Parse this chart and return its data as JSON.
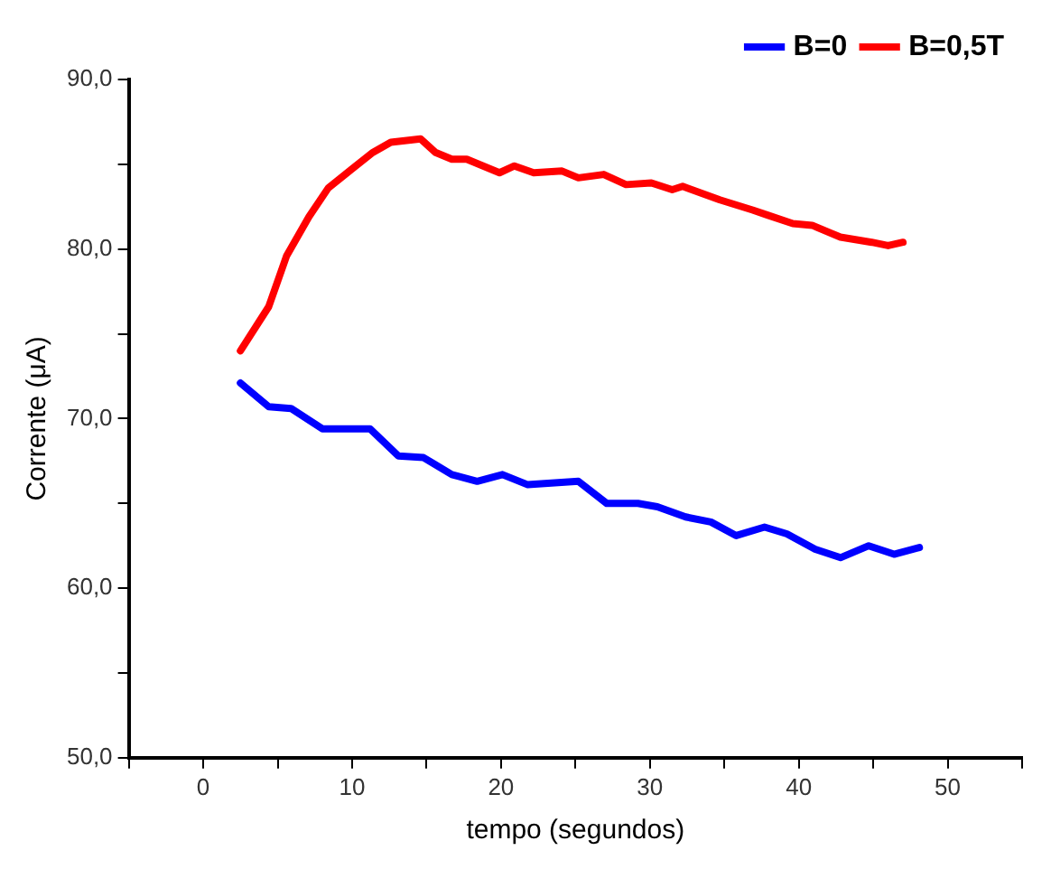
{
  "chart_data": {
    "type": "line",
    "xlabel": "tempo (segundos)",
    "ylabel": "Corrente (μA)",
    "xlim": [
      -5,
      55
    ],
    "xticks": [
      {
        "value": -5,
        "label": null
      },
      0,
      {
        "value": 5,
        "label": null
      },
      10,
      {
        "value": 15,
        "label": null
      },
      20,
      {
        "value": 25,
        "label": null
      },
      30,
      {
        "value": 35,
        "label": null
      },
      40,
      {
        "value": 45,
        "label": null
      },
      50,
      {
        "value": 55,
        "label": null
      }
    ],
    "ylim": [
      50,
      90
    ],
    "yticks": [
      {
        "value": 50,
        "label": "50,0"
      },
      {
        "value": 55,
        "label": null
      },
      {
        "value": 60,
        "label": "60,0"
      },
      {
        "value": 65,
        "label": null
      },
      {
        "value": 70,
        "label": "70,0"
      },
      {
        "value": 75,
        "label": null
      },
      {
        "value": 80,
        "label": "80,0"
      },
      {
        "value": 85,
        "label": null
      },
      {
        "value": 90,
        "label": "90,0"
      }
    ],
    "grid": false,
    "legend": "top right",
    "marker": "none",
    "line_style": "solid",
    "series": [
      {
        "name": "B=0",
        "color": "#0000ff",
        "x": [
          2.5,
          4.4,
          5.9,
          8.0,
          11.2,
          13.1,
          14.8,
          16.7,
          18.4,
          20.1,
          21.8,
          25.2,
          27.1,
          29.2,
          30.5,
          32.4,
          34.1,
          35.8,
          37.7,
          39.2,
          41.1,
          42.8,
          44.7,
          46.4,
          48.1
        ],
        "values": [
          72.1,
          70.7,
          70.6,
          69.4,
          69.4,
          67.8,
          67.7,
          66.7,
          66.3,
          66.7,
          66.1,
          66.3,
          65.0,
          65.0,
          64.8,
          64.2,
          63.9,
          63.1,
          63.6,
          63.2,
          62.3,
          61.8,
          62.5,
          62.0,
          62.4
        ]
      },
      {
        "name": "B=0,5T",
        "color": "#ff0000",
        "x": [
          2.5,
          4.4,
          5.6,
          7.1,
          8.4,
          10.1,
          11.4,
          12.6,
          14.6,
          15.6,
          16.7,
          17.7,
          19.9,
          20.9,
          22.2,
          24.1,
          25.2,
          26.9,
          28.4,
          30.1,
          31.5,
          32.2,
          34.7,
          36.9,
          37.9,
          39.6,
          40.9,
          42.8,
          44.9,
          46.0,
          47.0
        ],
        "values": [
          74.0,
          76.6,
          79.6,
          81.9,
          83.6,
          84.8,
          85.7,
          86.3,
          86.5,
          85.7,
          85.3,
          85.3,
          84.5,
          84.9,
          84.5,
          84.6,
          84.2,
          84.4,
          83.8,
          83.9,
          83.5,
          83.7,
          82.9,
          82.3,
          82.0,
          81.5,
          81.4,
          80.7,
          80.4,
          80.2,
          80.4
        ]
      }
    ]
  }
}
